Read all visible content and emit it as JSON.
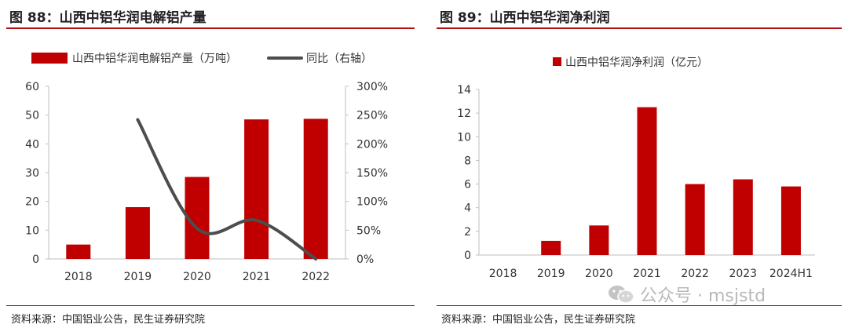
{
  "colors": {
    "accent": "#c00000",
    "line": "#4d4d4d",
    "rule": "#b01010",
    "axis": "#bfbfbf",
    "watermark": "#b9b9b9"
  },
  "left_panel": {
    "title": "图 88：山西中铝华润电解铝产量",
    "source": "资料来源：中国铝业公告，民生证券研究院"
  },
  "right_panel": {
    "title": "图 89：山西中铝华润净利润",
    "source": "资料来源：中国铝业公告，民生证券研究院"
  },
  "watermark": {
    "icon": "wechat-icon",
    "text": "公众号 · msjstd"
  },
  "chart_data": [
    {
      "type": "bar",
      "title": "图 88：山西中铝华润电解铝产量",
      "categories": [
        "2018",
        "2019",
        "2020",
        "2021",
        "2022"
      ],
      "series": [
        {
          "name": "山西中铝华润电解铝产量（万吨）",
          "type": "bar",
          "axis": "left",
          "values": [
            5,
            18,
            28.5,
            48.5,
            48.7
          ]
        },
        {
          "name": "同比（右轴）",
          "type": "line",
          "axis": "right",
          "values": [
            null,
            242,
            53,
            67,
            0
          ]
        }
      ],
      "y_left": {
        "min": 0,
        "max": 60,
        "ticks": [
          "0",
          "10",
          "20",
          "30",
          "40",
          "50",
          "60"
        ]
      },
      "y_right": {
        "min": 0,
        "max": 300,
        "ticks": [
          "0%",
          "50%",
          "100%",
          "150%",
          "200%",
          "250%",
          "300%"
        ]
      },
      "legend_position": "top",
      "grid": false
    },
    {
      "type": "bar",
      "title": "图 89：山西中铝华润净利润",
      "categories": [
        "2018",
        "2019",
        "2020",
        "2021",
        "2022",
        "2023",
        "2024H1"
      ],
      "series": [
        {
          "name": "山西中铝华润净利润（亿元）",
          "values": [
            0,
            1.2,
            2.5,
            12.5,
            6.0,
            6.4,
            5.8
          ]
        }
      ],
      "y": {
        "min": 0,
        "max": 14,
        "ticks": [
          "0",
          "2",
          "4",
          "6",
          "8",
          "10",
          "12",
          "14"
        ]
      },
      "legend_position": "top",
      "grid": false
    }
  ]
}
